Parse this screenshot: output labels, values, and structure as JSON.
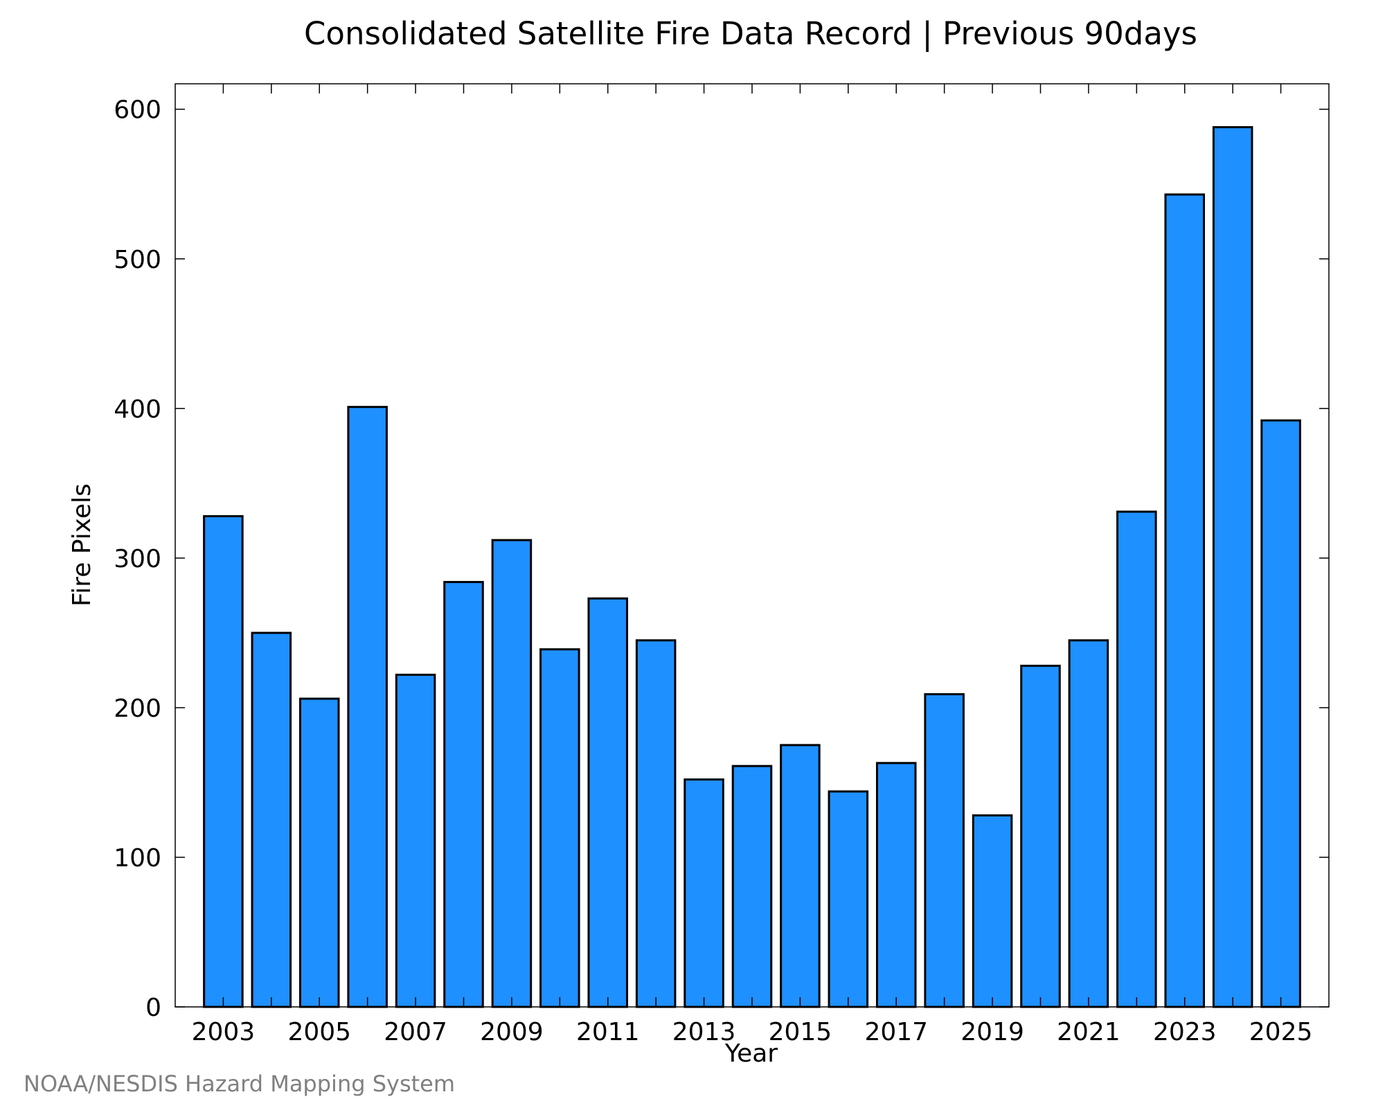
{
  "chart_data": {
    "type": "bar",
    "title": "Consolidated Satellite Fire Data Record | Previous 90days",
    "xlabel": "Year",
    "ylabel": "Fire Pixels",
    "categories": [
      "2003",
      "2004",
      "2005",
      "2006",
      "2007",
      "2008",
      "2009",
      "2010",
      "2011",
      "2012",
      "2013",
      "2014",
      "2015",
      "2016",
      "2017",
      "2018",
      "2019",
      "2020",
      "2021",
      "2022",
      "2023",
      "2024",
      "2025"
    ],
    "values": [
      328,
      250,
      206,
      401,
      222,
      284,
      312,
      239,
      273,
      245,
      152,
      161,
      175,
      144,
      163,
      209,
      128,
      228,
      245,
      331,
      543,
      588,
      392
    ],
    "x_tick_labels": [
      "2003",
      "2005",
      "2007",
      "2009",
      "2011",
      "2013",
      "2015",
      "2017",
      "2019",
      "2021",
      "2023",
      "2025"
    ],
    "y_ticks": [
      0,
      100,
      200,
      300,
      400,
      500,
      600
    ],
    "ylim": [
      0,
      617
    ],
    "grid": false,
    "legend": "none",
    "bar_color": "#1e90ff",
    "bar_edge_color": "#000000"
  },
  "credit": "NOAA/NESDIS Hazard Mapping System"
}
